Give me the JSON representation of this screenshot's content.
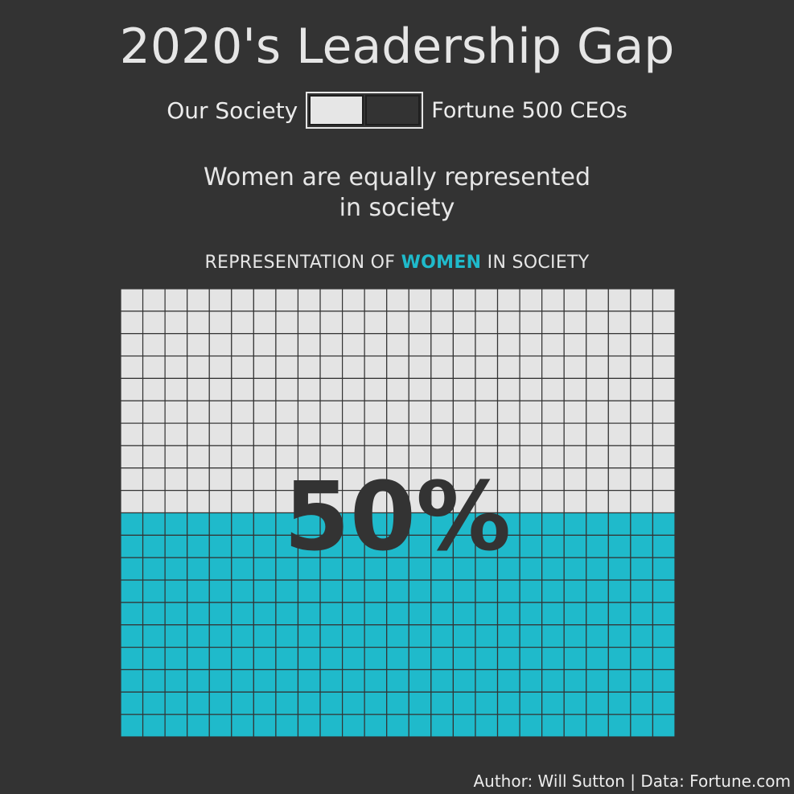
{
  "title": "2020's Leadership Gap",
  "toggle": {
    "left_label": "Our Society",
    "right_label": "Fortune 500 CEOs",
    "selected": "Our Society"
  },
  "subtitle": {
    "line1": "Women are equally represented",
    "line2": "in society"
  },
  "chart_title": {
    "prefix": "REPRESENTATION OF",
    "highlight": "WOMEN",
    "suffix": "IN SOCIETY"
  },
  "footer": "Author: Will Sutton | Data: Fortune.com",
  "colors": {
    "background": "#333333",
    "women": "#1fbacb",
    "other": "#e4e4e4",
    "cell_border": "#333333",
    "percent_text": "#333333"
  },
  "chart_data": {
    "type": "waffle",
    "columns": 25,
    "rows": 20,
    "value_percent": 50,
    "label": "50%"
  }
}
